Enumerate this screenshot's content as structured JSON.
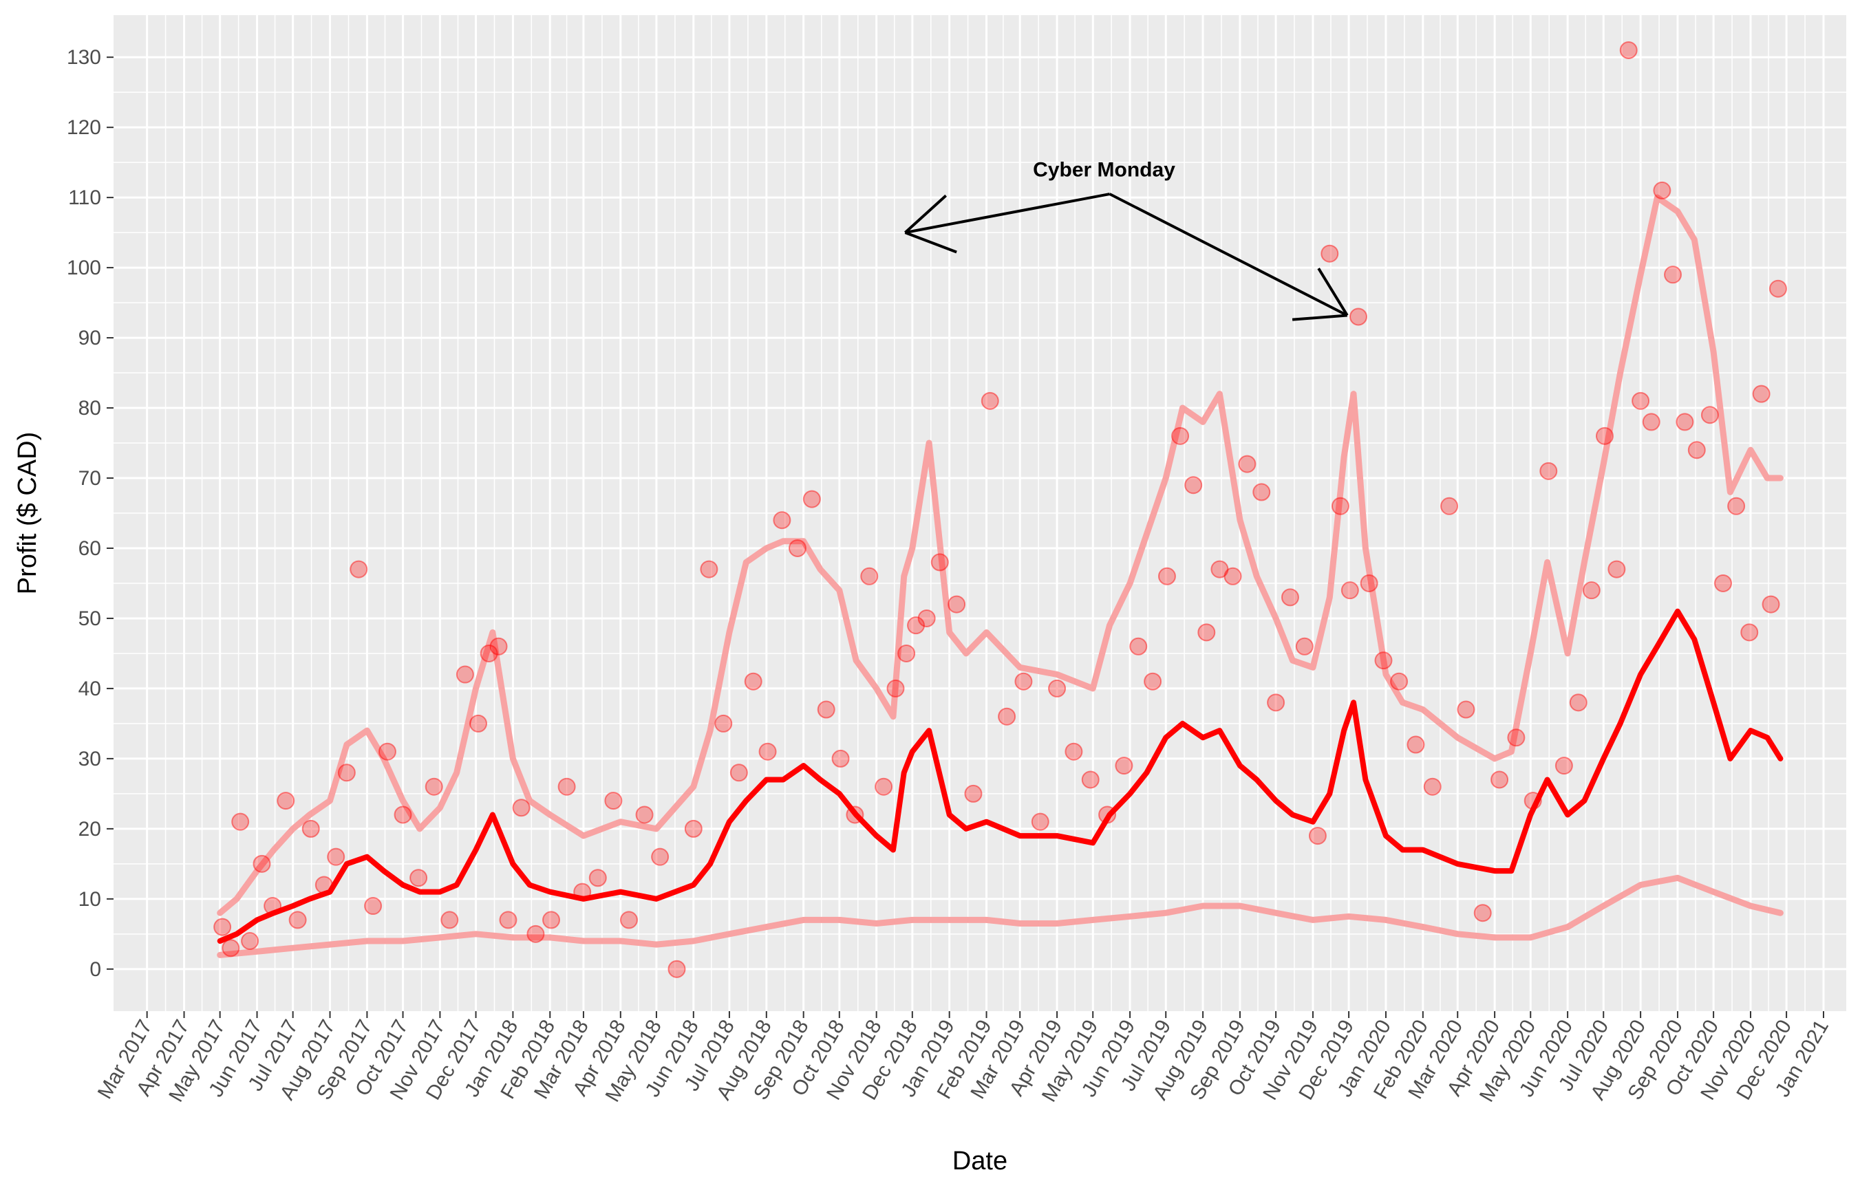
{
  "chart_data": {
    "type": "scatter",
    "title": "",
    "xlabel": "Date",
    "ylabel": "Profit ($ CAD)",
    "xlim": [
      "2017-02-01",
      "2021-01-20"
    ],
    "ylim": [
      -6,
      136
    ],
    "x_ticks": [
      "2017-03-01",
      "2017-04-01",
      "2017-05-01",
      "2017-06-01",
      "2017-07-01",
      "2017-08-01",
      "2017-09-01",
      "2017-10-01",
      "2017-11-01",
      "2017-12-01",
      "2018-01-01",
      "2018-02-01",
      "2018-03-01",
      "2018-04-01",
      "2018-05-01",
      "2018-06-01",
      "2018-07-01",
      "2018-08-01",
      "2018-09-01",
      "2018-10-01",
      "2018-11-01",
      "2018-12-01",
      "2019-01-01",
      "2019-02-01",
      "2019-03-01",
      "2019-04-01",
      "2019-05-01",
      "2019-06-01",
      "2019-07-01",
      "2019-08-01",
      "2019-09-01",
      "2019-10-01",
      "2019-11-01",
      "2019-12-01",
      "2020-01-01",
      "2020-02-01",
      "2020-03-01",
      "2020-04-01",
      "2020-05-01",
      "2020-06-01",
      "2020-07-01",
      "2020-08-01",
      "2020-09-01",
      "2020-10-01",
      "2020-11-01",
      "2020-12-01",
      "2021-01-01"
    ],
    "x_tick_labels": [
      "Mar 2017",
      "Apr 2017",
      "May 2017",
      "Jun 2017",
      "Jul 2017",
      "Aug 2017",
      "Sep 2017",
      "Oct 2017",
      "Nov 2017",
      "Dec 2017",
      "Jan 2018",
      "Feb 2018",
      "Mar 2018",
      "Apr 2018",
      "May 2018",
      "Jun 2018",
      "Jul 2018",
      "Aug 2018",
      "Sep 2018",
      "Oct 2018",
      "Nov 2018",
      "Dec 2018",
      "Jan 2019",
      "Feb 2019",
      "Mar 2019",
      "Apr 2019",
      "May 2019",
      "Jun 2019",
      "Jul 2019",
      "Aug 2019",
      "Sep 2019",
      "Oct 2019",
      "Nov 2019",
      "Dec 2019",
      "Jan 2020",
      "Feb 2020",
      "Mar 2020",
      "Apr 2020",
      "May 2020",
      "Jun 2020",
      "Jul 2020",
      "Aug 2020",
      "Sep 2020",
      "Oct 2020",
      "Nov 2020",
      "Dec 2020",
      "Jan 2021"
    ],
    "y_ticks": [
      0,
      10,
      20,
      30,
      40,
      50,
      60,
      70,
      80,
      90,
      100,
      110,
      120,
      130
    ],
    "grid": true,
    "legend": "none",
    "colors": {
      "points": "#ff0000",
      "mean_line": "#ff0000",
      "band_lines": "#f8a3a3",
      "panel_bg": "#ebebeb",
      "grid": "#ffffff",
      "annotation": "#000000"
    },
    "series": [
      {
        "kind": "points",
        "x": [
          "2017-05-03",
          "2017-05-10",
          "2017-05-18",
          "2017-05-26",
          "2017-06-05",
          "2017-06-14",
          "2017-06-25",
          "2017-07-05",
          "2017-07-16",
          "2017-07-27",
          "2017-08-06",
          "2017-08-15",
          "2017-08-25",
          "2017-09-06",
          "2017-09-18",
          "2017-10-01",
          "2017-10-14",
          "2017-10-27",
          "2017-11-09",
          "2017-11-22",
          "2017-12-03",
          "2017-12-12",
          "2017-12-20",
          "2017-12-28",
          "2018-01-08",
          "2018-01-20",
          "2018-02-02",
          "2018-02-15",
          "2018-02-28",
          "2018-03-13",
          "2018-03-26",
          "2018-04-08",
          "2018-04-21",
          "2018-05-04",
          "2018-05-18",
          "2018-06-01",
          "2018-06-14",
          "2018-06-26",
          "2018-07-09",
          "2018-07-21",
          "2018-08-02",
          "2018-08-14",
          "2018-08-27",
          "2018-09-08",
          "2018-09-20",
          "2018-10-02",
          "2018-10-14",
          "2018-10-26",
          "2018-11-07",
          "2018-11-17",
          "2018-11-26",
          "2018-12-04",
          "2018-12-13",
          "2018-12-24",
          "2019-01-07",
          "2019-01-21",
          "2019-02-04",
          "2019-02-18",
          "2019-03-04",
          "2019-03-18",
          "2019-04-01",
          "2019-04-15",
          "2019-04-29",
          "2019-05-13",
          "2019-05-27",
          "2019-06-08",
          "2019-06-20",
          "2019-07-02",
          "2019-07-13",
          "2019-07-24",
          "2019-08-04",
          "2019-08-15",
          "2019-08-26",
          "2019-09-07",
          "2019-09-19",
          "2019-10-01",
          "2019-10-13",
          "2019-10-25",
          "2019-11-05",
          "2019-11-15",
          "2019-11-24",
          "2019-12-02",
          "2019-12-09",
          "2019-12-18",
          "2019-12-30",
          "2020-01-12",
          "2020-01-26",
          "2020-02-09",
          "2020-02-23",
          "2020-03-08",
          "2020-03-22",
          "2020-04-05",
          "2020-04-19",
          "2020-05-03",
          "2020-05-16",
          "2020-05-29",
          "2020-06-10",
          "2020-06-21",
          "2020-07-02",
          "2020-07-12",
          "2020-07-22",
          "2020-08-01",
          "2020-08-10",
          "2020-08-19",
          "2020-08-28",
          "2020-09-07",
          "2020-09-17",
          "2020-09-28",
          "2020-10-09",
          "2020-10-20",
          "2020-10-31",
          "2020-11-10",
          "2020-11-18",
          "2020-11-24"
        ],
        "y": [
          6,
          3,
          21,
          4,
          15,
          9,
          24,
          7,
          20,
          12,
          16,
          28,
          57,
          9,
          31,
          22,
          13,
          26,
          7,
          42,
          35,
          45,
          46,
          7,
          23,
          5,
          7,
          26,
          11,
          13,
          24,
          7,
          22,
          16,
          0,
          20,
          57,
          35,
          28,
          41,
          31,
          64,
          60,
          67,
          37,
          30,
          22,
          56,
          26,
          40,
          45,
          49,
          50,
          58,
          52,
          25,
          81,
          36,
          41,
          21,
          40,
          31,
          27,
          22,
          29,
          46,
          41,
          56,
          76,
          69,
          48,
          57,
          56,
          72,
          68,
          38,
          53,
          46,
          19,
          102,
          66,
          54,
          93,
          55,
          44,
          41,
          32,
          26,
          66,
          37,
          8,
          27,
          33,
          24,
          71,
          29,
          38,
          54,
          76,
          57,
          131,
          81,
          78,
          111,
          99,
          78,
          74,
          79,
          55,
          66,
          48,
          82,
          52,
          97
        ]
      },
      {
        "kind": "line",
        "name": "",
        "x": [
          "2017-05-01",
          "2017-05-15",
          "2017-06-01",
          "2017-06-15",
          "2017-07-01",
          "2017-07-15",
          "2017-08-01",
          "2017-08-15",
          "2017-09-01",
          "2017-09-15",
          "2017-10-01",
          "2017-10-15",
          "2017-11-01",
          "2017-11-15",
          "2017-12-01",
          "2017-12-15",
          "2018-01-01",
          "2018-01-15",
          "2018-02-01",
          "2018-03-01",
          "2018-04-01",
          "2018-05-01",
          "2018-06-01",
          "2018-06-15",
          "2018-07-01",
          "2018-07-15",
          "2018-08-01",
          "2018-08-15",
          "2018-09-01",
          "2018-09-15",
          "2018-10-01",
          "2018-10-15",
          "2018-11-01",
          "2018-11-15",
          "2018-11-24",
          "2018-12-01",
          "2018-12-15",
          "2019-01-01",
          "2019-01-15",
          "2019-02-01",
          "2019-03-01",
          "2019-04-01",
          "2019-05-01",
          "2019-05-15",
          "2019-06-01",
          "2019-06-15",
          "2019-07-01",
          "2019-07-15",
          "2019-08-01",
          "2019-08-15",
          "2019-09-01",
          "2019-09-15",
          "2019-10-01",
          "2019-10-15",
          "2019-11-01",
          "2019-11-15",
          "2019-11-27",
          "2019-12-05",
          "2019-12-15",
          "2020-01-01",
          "2020-01-15",
          "2020-02-01",
          "2020-03-01",
          "2020-04-01",
          "2020-04-15",
          "2020-05-01",
          "2020-05-15",
          "2020-06-01",
          "2020-06-15",
          "2020-07-01",
          "2020-07-15",
          "2020-08-01",
          "2020-08-15",
          "2020-09-01",
          "2020-09-15",
          "2020-10-01",
          "2020-10-15",
          "2020-11-01",
          "2020-11-15",
          "2020-11-26"
        ],
        "y": [
          4,
          5,
          7,
          8,
          9,
          10,
          11,
          15,
          16,
          14,
          12,
          11,
          11,
          12,
          17,
          22,
          15,
          12,
          11,
          10,
          11,
          10,
          12,
          15,
          21,
          24,
          27,
          27,
          29,
          27,
          25,
          22,
          19,
          17,
          28,
          31,
          34,
          22,
          20,
          21,
          19,
          19,
          18,
          22,
          25,
          28,
          33,
          35,
          33,
          34,
          29,
          27,
          24,
          22,
          21,
          25,
          34,
          38,
          27,
          19,
          17,
          17,
          15,
          14,
          14,
          22,
          27,
          22,
          24,
          30,
          35,
          42,
          46,
          51,
          47,
          38,
          30,
          34,
          33,
          30
        ]
      },
      {
        "kind": "line",
        "name": "",
        "x": [
          "2017-05-01",
          "2017-05-15",
          "2017-06-01",
          "2017-06-15",
          "2017-07-01",
          "2017-07-15",
          "2017-08-01",
          "2017-08-15",
          "2017-09-01",
          "2017-09-15",
          "2017-10-01",
          "2017-10-15",
          "2017-11-01",
          "2017-11-15",
          "2017-12-01",
          "2017-12-15",
          "2018-01-01",
          "2018-01-15",
          "2018-02-01",
          "2018-03-01",
          "2018-04-01",
          "2018-05-01",
          "2018-06-01",
          "2018-06-15",
          "2018-07-01",
          "2018-07-15",
          "2018-08-01",
          "2018-08-15",
          "2018-09-01",
          "2018-09-15",
          "2018-10-01",
          "2018-10-15",
          "2018-11-01",
          "2018-11-15",
          "2018-11-24",
          "2018-12-01",
          "2018-12-15",
          "2019-01-01",
          "2019-01-15",
          "2019-02-01",
          "2019-03-01",
          "2019-04-01",
          "2019-05-01",
          "2019-05-15",
          "2019-06-01",
          "2019-06-15",
          "2019-07-01",
          "2019-07-15",
          "2019-08-01",
          "2019-08-15",
          "2019-09-01",
          "2019-09-15",
          "2019-10-01",
          "2019-10-15",
          "2019-11-01",
          "2019-11-15",
          "2019-11-27",
          "2019-12-05",
          "2019-12-15",
          "2020-01-01",
          "2020-01-15",
          "2020-02-01",
          "2020-03-01",
          "2020-04-01",
          "2020-04-15",
          "2020-05-01",
          "2020-05-15",
          "2020-06-01",
          "2020-06-15",
          "2020-07-01",
          "2020-07-15",
          "2020-08-01",
          "2020-08-15",
          "2020-09-01",
          "2020-09-15",
          "2020-10-01",
          "2020-10-15",
          "2020-11-01",
          "2020-11-15",
          "2020-11-26"
        ],
        "y": [
          8,
          10,
          14,
          17,
          20,
          22,
          24,
          32,
          34,
          30,
          24,
          20,
          23,
          28,
          40,
          48,
          30,
          24,
          22,
          19,
          21,
          20,
          26,
          34,
          48,
          58,
          60,
          61,
          61,
          57,
          54,
          44,
          40,
          36,
          56,
          60,
          75,
          48,
          45,
          48,
          43,
          42,
          40,
          49,
          55,
          62,
          70,
          80,
          78,
          82,
          64,
          56,
          50,
          44,
          43,
          53,
          73,
          82,
          60,
          42,
          38,
          37,
          33,
          30,
          31,
          45,
          58,
          45,
          58,
          72,
          85,
          99,
          110,
          108,
          104,
          88,
          68,
          74,
          70,
          70
        ]
      },
      {
        "kind": "line",
        "name": "",
        "x": [
          "2017-05-01",
          "2017-06-01",
          "2017-07-01",
          "2017-08-01",
          "2017-09-01",
          "2017-10-01",
          "2017-11-01",
          "2017-12-01",
          "2018-01-01",
          "2018-02-01",
          "2018-03-01",
          "2018-04-01",
          "2018-05-01",
          "2018-06-01",
          "2018-07-01",
          "2018-08-01",
          "2018-09-01",
          "2018-10-01",
          "2018-11-01",
          "2018-12-01",
          "2019-01-01",
          "2019-02-01",
          "2019-03-01",
          "2019-04-01",
          "2019-05-01",
          "2019-06-01",
          "2019-07-01",
          "2019-08-01",
          "2019-09-01",
          "2019-10-01",
          "2019-11-01",
          "2019-12-01",
          "2020-01-01",
          "2020-02-01",
          "2020-03-01",
          "2020-04-01",
          "2020-05-01",
          "2020-06-01",
          "2020-07-01",
          "2020-08-01",
          "2020-09-01",
          "2020-10-01",
          "2020-11-01",
          "2020-11-26"
        ],
        "y": [
          2,
          2.5,
          3,
          3.5,
          4,
          4,
          4.5,
          5,
          4.5,
          4.5,
          4,
          4,
          3.5,
          4,
          5,
          6,
          7,
          7,
          6.5,
          7,
          7,
          7,
          6.5,
          6.5,
          7,
          7.5,
          8,
          9,
          9,
          8,
          7,
          7.5,
          7,
          6,
          5,
          4.5,
          4.5,
          6,
          9,
          12,
          13,
          11,
          9,
          8
        ]
      }
    ],
    "annotations": [
      {
        "text": "Cyber Monday",
        "pointer_tip": [
          "2018-11-25",
          105
        ],
        "targets": [
          {
            "x": "2018-11-26",
            "y": 104.5
          },
          {
            "x": "2019-12-02",
            "y": 93
          }
        ]
      }
    ]
  }
}
